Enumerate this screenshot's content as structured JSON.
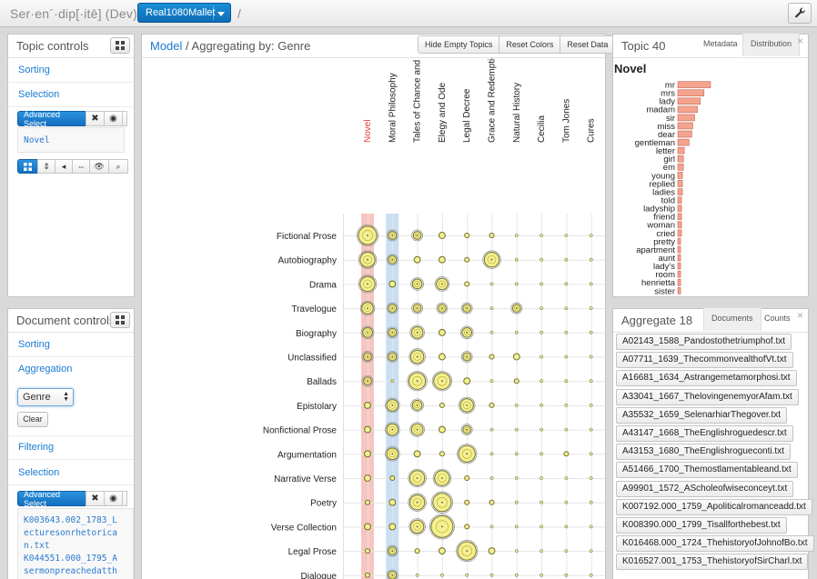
{
  "app": {
    "brand": "Ser·en´·dip[·itē] (Dev)",
    "model_button": "Real1080Mallet",
    "crumb_sep": "/"
  },
  "topic_controls": {
    "title": "Topic controls",
    "links": [
      "Sorting",
      "Selection"
    ],
    "advanced_select": "Advanced Select",
    "selected": "Novel"
  },
  "document_controls": {
    "title": "Document controls",
    "links": [
      "Sorting",
      "Aggregation",
      "Filtering",
      "Selection"
    ],
    "aggregation_value": "Genre",
    "clear_label": "Clear",
    "advanced_select": "Advanced Select",
    "selected_lines": [
      "K003643.002_1783_L",
      "ecturesonrhetorica",
      "n.txt",
      "K044551.000_1795_A",
      "sermonpreachedatth"
    ]
  },
  "main": {
    "model_link": "Model",
    "title_rest": " / Aggregating by: Genre",
    "buttons": [
      "Hide Empty Topics",
      "Reset Colors",
      "Reset Data"
    ],
    "chart_data": {
      "type": "bubble-matrix",
      "columns": [
        "Novel",
        "Moral Philosophy",
        "Tales of Chance and Virtue",
        "Elegy and Ode",
        "Legal Decree",
        "Grace and Redemption",
        "Natural History",
        "Cecilia",
        "Tom Jones",
        "Cures"
      ],
      "highlighted_columns": [
        {
          "column": "Novel",
          "color": "#f6c5c0"
        },
        {
          "column": "Moral Philosophy",
          "color": "#c9def1"
        }
      ],
      "highlighted_label_color": "#e0403a",
      "rows": [
        "Fictional Prose",
        "Autobiography",
        "Drama",
        "Travelogue",
        "Biography",
        "Unclassified",
        "Ballads",
        "Epistolary",
        "Nonfictional Prose",
        "Argumentation",
        "Narrative Verse",
        "Poetry",
        "Verse Collection",
        "Legal Prose",
        "Dialogue"
      ],
      "sizes": [
        [
          5,
          2,
          2,
          1.5,
          1,
          1,
          0.5,
          0.5,
          0.5,
          0.5
        ],
        [
          4,
          2,
          1.5,
          1.5,
          1,
          4,
          0.5,
          0.5,
          0.5,
          0.5
        ],
        [
          4,
          1.5,
          2.5,
          3,
          1,
          0.5,
          0.5,
          0.5,
          0.5,
          0.5
        ],
        [
          3,
          2,
          2,
          2,
          2,
          0.5,
          2,
          0.5,
          0.5,
          0.5
        ],
        [
          2.5,
          2,
          3,
          1.5,
          2.5,
          0.5,
          0.5,
          0.5,
          0.5,
          0.5
        ],
        [
          2,
          2,
          3.5,
          1.5,
          2,
          1,
          1.5,
          0.5,
          0.5,
          0.5
        ],
        [
          2,
          0.5,
          4.5,
          4.5,
          1.5,
          0.5,
          1,
          0.5,
          0.5,
          0.5
        ],
        [
          1.5,
          3,
          2.5,
          1,
          3.5,
          1,
          0.5,
          0.5,
          0.5,
          0.5
        ],
        [
          1.5,
          3,
          3,
          1.5,
          2,
          0.5,
          0.5,
          0.5,
          0.5,
          0.5
        ],
        [
          1.5,
          3,
          1.5,
          1,
          4.5,
          0.5,
          0.5,
          0.5,
          1,
          0.5
        ],
        [
          1.5,
          1,
          4,
          4,
          1,
          0.5,
          0.5,
          0.5,
          0.5,
          0.5
        ],
        [
          1,
          1.5,
          4,
          5,
          1,
          1,
          0.5,
          0.5,
          0.5,
          0.5
        ],
        [
          1.5,
          1.5,
          3.5,
          6,
          1,
          0.5,
          0.5,
          0.5,
          0.5,
          0.5
        ],
        [
          1,
          2,
          1,
          1.5,
          5,
          1.5,
          0.5,
          0.5,
          0.5,
          0.5
        ],
        [
          1,
          2,
          0.5,
          0.5,
          0.5,
          0.5,
          0.5,
          0.5,
          0.5,
          0.5
        ]
      ]
    }
  },
  "topic_panel": {
    "title": "Topic 40",
    "tabs": [
      "Metadata",
      "Distribution"
    ],
    "topic_name": "Novel",
    "chart_data": {
      "type": "bar",
      "orientation": "horizontal",
      "categories": [
        "mr",
        "mrs",
        "lady",
        "madam",
        "sir",
        "miss",
        "dear",
        "gentleman",
        "letter",
        "girl",
        "em",
        "young",
        "replied",
        "ladies",
        "told",
        "ladyship",
        "friend",
        "woman",
        "cried",
        "pretty",
        "apartment",
        "aunt",
        "lady's",
        "room",
        "henrietta",
        "sister"
      ],
      "values": [
        35,
        28,
        24,
        21,
        18,
        16,
        15,
        12,
        7,
        6,
        6,
        5,
        5,
        5,
        4,
        4,
        4,
        4,
        4,
        3,
        3,
        3,
        3,
        3,
        3,
        3
      ],
      "bar_color": "#f4a38f"
    }
  },
  "aggregate_panel": {
    "title": "Aggregate 18",
    "tabs": [
      "Documents",
      "Counts"
    ],
    "documents": [
      "A02143_1588_Pandostothetriumphof.txt",
      "A07711_1639_ThecommonvealthofVt.txt",
      "A16681_1634_Astrangemetamorphosi.txt",
      "A33041_1667_ThelovingenemyorAfam.txt",
      "A35532_1659_SelenarhiarThegover.txt",
      "A43147_1668_TheEnglishroguedescr.txt",
      "A43153_1680_TheEnglishrogueconti.txt",
      "A51466_1700_Themostlamentableand.txt",
      "A99901_1572_AScholeofwiseconceyt.txt",
      "K007192.000_1759_Apoliticalromanceadd.txt",
      "K008390.000_1799_Tisallforthebest.txt",
      "K016468.000_1724_ThehistoryofJohnofBo.txt",
      "K016527.001_1753_ThehistoryofSirCharl.txt"
    ]
  }
}
